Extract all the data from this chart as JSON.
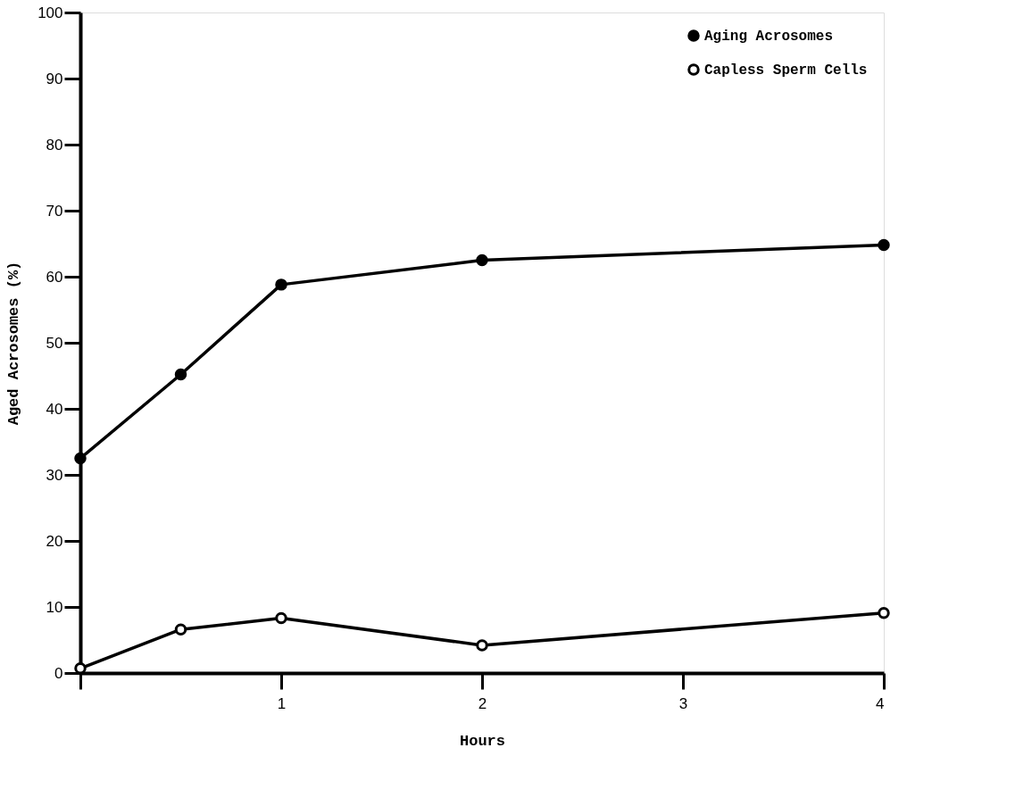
{
  "chart_data": {
    "type": "line",
    "xlabel": "Hours",
    "ylabel": "Aged Acrosomes (%)",
    "xlim": [
      0,
      4
    ],
    "xticks": [
      {
        "value": 0,
        "label": null
      },
      1,
      2,
      3,
      4
    ],
    "ylim": [
      0,
      100
    ],
    "yticks": [
      0,
      10,
      20,
      30,
      40,
      50,
      60,
      70,
      80,
      90,
      100
    ],
    "grid": false,
    "legend": "top right",
    "line_style": "solid",
    "series": [
      {
        "name": "Aging Acrosomes",
        "color": "#000000",
        "marker": "circle",
        "x": [
          0,
          0.5,
          1,
          2,
          4
        ],
        "values": [
          32.5,
          45.2,
          58.8,
          62.5,
          64.8
        ]
      },
      {
        "name": "Capless Sperm Cells",
        "color": "#000000",
        "marker": "circle",
        "x": [
          0,
          0.5,
          1,
          2,
          4
        ],
        "values": [
          0.7,
          6.6,
          8.3,
          4.2,
          9.1
        ]
      }
    ]
  }
}
